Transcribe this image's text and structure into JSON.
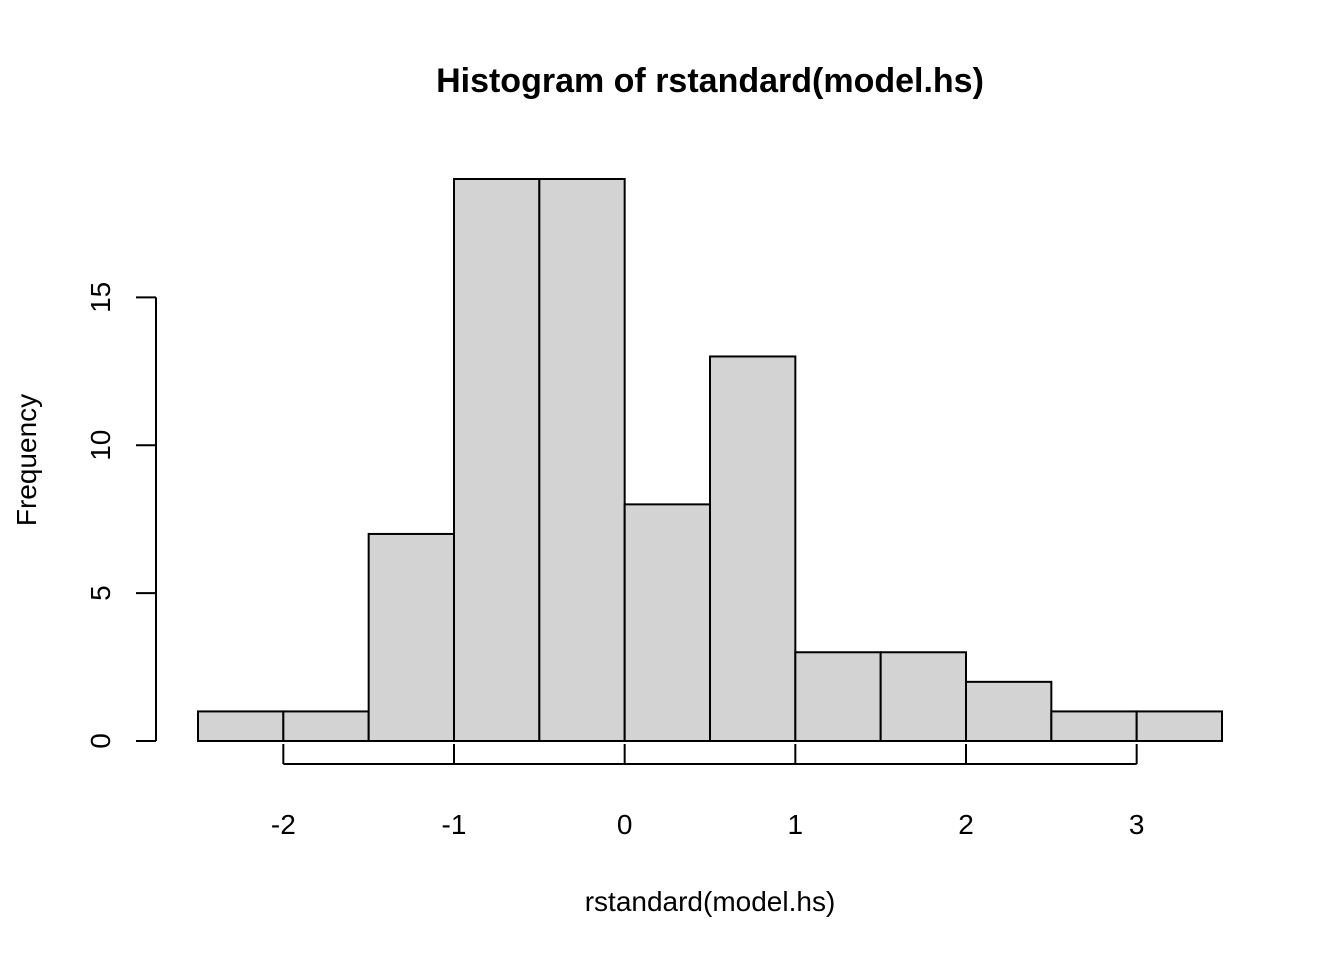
{
  "chart_data": {
    "type": "bar",
    "title": "Histogram of rstandard(model.hs)",
    "xlabel": "rstandard(model.hs)",
    "ylabel": "Frequency",
    "bins": [
      {
        "x0": -2.5,
        "x1": -2.0,
        "count": 1
      },
      {
        "x0": -2.0,
        "x1": -1.5,
        "count": 1
      },
      {
        "x0": -1.5,
        "x1": -1.0,
        "count": 7
      },
      {
        "x0": -1.0,
        "x1": -0.5,
        "count": 19
      },
      {
        "x0": -0.5,
        "x1": 0.0,
        "count": 19
      },
      {
        "x0": 0.0,
        "x1": 0.5,
        "count": 8
      },
      {
        "x0": 0.5,
        "x1": 1.0,
        "count": 13
      },
      {
        "x0": 1.0,
        "x1": 1.5,
        "count": 3
      },
      {
        "x0": 1.5,
        "x1": 2.0,
        "count": 3
      },
      {
        "x0": 2.0,
        "x1": 2.5,
        "count": 2
      },
      {
        "x0": 2.5,
        "x1": 3.0,
        "count": 1
      },
      {
        "x0": 3.0,
        "x1": 3.5,
        "count": 1
      }
    ],
    "xticks": [
      -2,
      -1,
      0,
      1,
      2,
      3
    ],
    "xtick_labels": [
      "-2",
      "-1",
      "0",
      "1",
      "2",
      "3"
    ],
    "yticks": [
      0,
      5,
      10,
      15
    ],
    "ytick_labels": [
      "0",
      "5",
      "10",
      "15"
    ],
    "xlim": [
      -2.5,
      3.5
    ],
    "ylim": [
      0,
      19
    ],
    "grid": false,
    "bar_color": "#d3d3d3",
    "edge_color": "#000000"
  }
}
